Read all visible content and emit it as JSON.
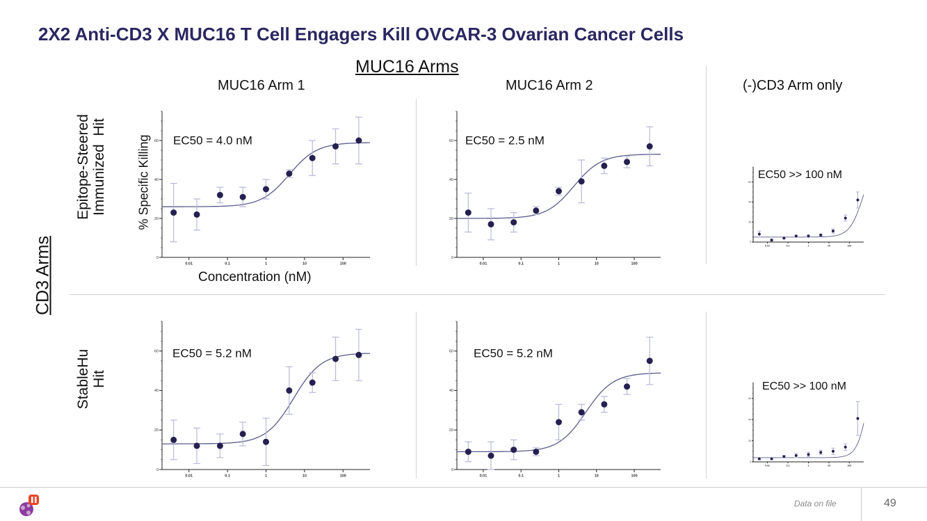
{
  "title": "2X2 Anti-CD3 X MUC16 T Cell Engagers Kill OVCAR-3 Ovarian Cancer Cells",
  "column_group_label": "MUC16 Arms",
  "row_group_label": "CD3 Arms",
  "columns": [
    "MUC16 Arm 1",
    "MUC16 Arm 2",
    "(-)CD3 Arm only"
  ],
  "rows": [
    "Epitope-Steered\nImmunized  Hit",
    "StableHu\nHit"
  ],
  "axis": {
    "ylabel": "% Specific Killing",
    "xlabel": "Concentration (nM)"
  },
  "footer": {
    "note": "Data on file",
    "page": "49"
  },
  "colors": {
    "title": "#2a2760",
    "points": "#252050",
    "curve": "#5a5a8c",
    "error": "#b8b8d8"
  },
  "chart_data": [
    {
      "id": "epitope-arm1",
      "type": "scatter",
      "fit": "sigmoidal",
      "annotation": "EC50 = 4.0 nM",
      "x": [
        0.004,
        0.016,
        0.064,
        0.25,
        1,
        4,
        16,
        64,
        256
      ],
      "y": [
        23,
        22,
        32,
        31,
        35,
        43,
        51,
        57,
        60
      ],
      "err": [
        15,
        8,
        4,
        5,
        5,
        2,
        9,
        9,
        12
      ],
      "fit_params": {
        "bottom": 26,
        "top": 59,
        "ec50": 4.0,
        "hill": 1.2
      },
      "xscale": "log",
      "xlim": [
        0.002,
        500
      ],
      "ylim": [
        0,
        75
      ],
      "yticks": [
        {
          "v": 0,
          "label": "0"
        },
        {
          "v": 20,
          "label": "20"
        },
        {
          "v": 40,
          "label": "40"
        },
        {
          "v": 60,
          "label": "60"
        }
      ],
      "xticks": [
        {
          "v": 0.01,
          "label": "0.01"
        },
        {
          "v": 0.1,
          "label": "0.1"
        },
        {
          "v": 1,
          "label": "1"
        },
        {
          "v": 10,
          "label": "10"
        },
        {
          "v": 100,
          "label": "100"
        }
      ]
    },
    {
      "id": "epitope-arm2",
      "type": "scatter",
      "fit": "sigmoidal",
      "annotation": "EC50 = 2.5 nM",
      "x": [
        0.004,
        0.016,
        0.064,
        0.25,
        1,
        4,
        16,
        64,
        256
      ],
      "y": [
        23,
        17,
        18,
        24,
        34,
        39,
        47,
        49,
        57
      ],
      "err": [
        10,
        8,
        5,
        2,
        2,
        11,
        4,
        3,
        10
      ],
      "fit_params": {
        "bottom": 20,
        "top": 53,
        "ec50": 2.5,
        "hill": 1.2
      },
      "xscale": "log",
      "xlim": [
        0.002,
        500
      ],
      "ylim": [
        0,
        75
      ],
      "yticks": [
        {
          "v": 0,
          "label": "0"
        },
        {
          "v": 20,
          "label": "20"
        },
        {
          "v": 40,
          "label": "40"
        },
        {
          "v": 60,
          "label": "60"
        }
      ],
      "xticks": [
        {
          "v": 0.01,
          "label": "0.01"
        },
        {
          "v": 0.1,
          "label": "0.1"
        },
        {
          "v": 1,
          "label": "1"
        },
        {
          "v": 10,
          "label": "10"
        },
        {
          "v": 100,
          "label": "100"
        }
      ]
    },
    {
      "id": "epitope-cd3only",
      "type": "scatter",
      "fit": "sigmoidal",
      "annotation": "EC50 >> 100 nM",
      "x": [
        0.004,
        0.016,
        0.064,
        0.25,
        1,
        4,
        16,
        64,
        256
      ],
      "y": [
        8,
        2,
        4,
        6,
        6,
        7,
        11,
        24,
        42
      ],
      "err": [
        3,
        1,
        1,
        1,
        1,
        1,
        2,
        3,
        8
      ],
      "fit_params": {
        "bottom": 5,
        "top": 90,
        "ec50": 500,
        "hill": 1.3
      },
      "xscale": "log",
      "xlim": [
        0.002,
        500
      ],
      "ylim": [
        0,
        75
      ],
      "yticks": [
        {
          "v": 0,
          "label": "0"
        },
        {
          "v": 20,
          "label": "20"
        },
        {
          "v": 40,
          "label": "40"
        },
        {
          "v": 60,
          "label": "60"
        }
      ],
      "xticks": [
        {
          "v": 0.01,
          "label": "0.01"
        },
        {
          "v": 0.1,
          "label": "0.1"
        },
        {
          "v": 1,
          "label": "1"
        },
        {
          "v": 10,
          "label": "10"
        },
        {
          "v": 100,
          "label": "100"
        }
      ]
    },
    {
      "id": "stablehu-arm1",
      "type": "scatter",
      "fit": "sigmoidal",
      "annotation": "EC50 = 5.2 nM",
      "x": [
        0.004,
        0.016,
        0.064,
        0.25,
        1,
        4,
        16,
        64,
        256
      ],
      "y": [
        15,
        12,
        12,
        18,
        14,
        40,
        44,
        56,
        58
      ],
      "err": [
        10,
        9,
        6,
        6,
        12,
        12,
        5,
        11,
        13
      ],
      "fit_params": {
        "bottom": 13,
        "top": 59,
        "ec50": 5.2,
        "hill": 1.2
      },
      "xscale": "log",
      "xlim": [
        0.002,
        500
      ],
      "ylim": [
        0,
        75
      ],
      "yticks": [
        {
          "v": 0,
          "label": "0"
        },
        {
          "v": 20,
          "label": "20"
        },
        {
          "v": 40,
          "label": "40"
        },
        {
          "v": 60,
          "label": "60"
        }
      ],
      "xticks": [
        {
          "v": 0.01,
          "label": "0.01"
        },
        {
          "v": 0.1,
          "label": "0.1"
        },
        {
          "v": 1,
          "label": "1"
        },
        {
          "v": 10,
          "label": "10"
        },
        {
          "v": 100,
          "label": "100"
        }
      ]
    },
    {
      "id": "stablehu-arm2",
      "type": "scatter",
      "fit": "sigmoidal",
      "annotation": "EC50 = 5.2 nM",
      "x": [
        0.004,
        0.016,
        0.064,
        0.25,
        1,
        4,
        16,
        64,
        256
      ],
      "y": [
        9,
        7,
        10,
        9,
        24,
        29,
        33,
        42,
        55
      ],
      "err": [
        5,
        7,
        5,
        2,
        9,
        4,
        4,
        4,
        12
      ],
      "fit_params": {
        "bottom": 9,
        "top": 49,
        "ec50": 5.2,
        "hill": 1.2
      },
      "xscale": "log",
      "xlim": [
        0.002,
        500
      ],
      "ylim": [
        0,
        75
      ],
      "yticks": [
        {
          "v": 0,
          "label": "0"
        },
        {
          "v": 20,
          "label": "20"
        },
        {
          "v": 40,
          "label": "40"
        },
        {
          "v": 60,
          "label": "60"
        }
      ],
      "xticks": [
        {
          "v": 0.01,
          "label": "0.01"
        },
        {
          "v": 0.1,
          "label": "0.1"
        },
        {
          "v": 1,
          "label": "1"
        },
        {
          "v": 10,
          "label": "10"
        },
        {
          "v": 100,
          "label": "100"
        }
      ]
    },
    {
      "id": "stablehu-cd3only",
      "type": "scatter",
      "fit": "sigmoidal",
      "annotation": "EC50 >> 100 nM",
      "x": [
        0.004,
        0.016,
        0.064,
        0.25,
        1,
        4,
        16,
        64,
        256
      ],
      "y": [
        3,
        3,
        5,
        6,
        7,
        9,
        10,
        14,
        41
      ],
      "err": [
        1,
        1,
        1,
        2,
        2,
        2,
        3,
        3,
        16
      ],
      "fit_params": {
        "bottom": 4,
        "top": 120,
        "ec50": 900,
        "hill": 1.6
      },
      "xscale": "log",
      "xlim": [
        0.002,
        500
      ],
      "ylim": [
        0,
        75
      ],
      "yticks": [
        {
          "v": 0,
          "label": "0"
        },
        {
          "v": 20,
          "label": "20"
        },
        {
          "v": 40,
          "label": "40"
        },
        {
          "v": 60,
          "label": "60"
        }
      ],
      "xticks": [
        {
          "v": 0.01,
          "label": "0.01"
        },
        {
          "v": 0.1,
          "label": "0.1"
        },
        {
          "v": 1,
          "label": "1"
        },
        {
          "v": 10,
          "label": "10"
        },
        {
          "v": 100,
          "label": "100"
        }
      ]
    }
  ]
}
